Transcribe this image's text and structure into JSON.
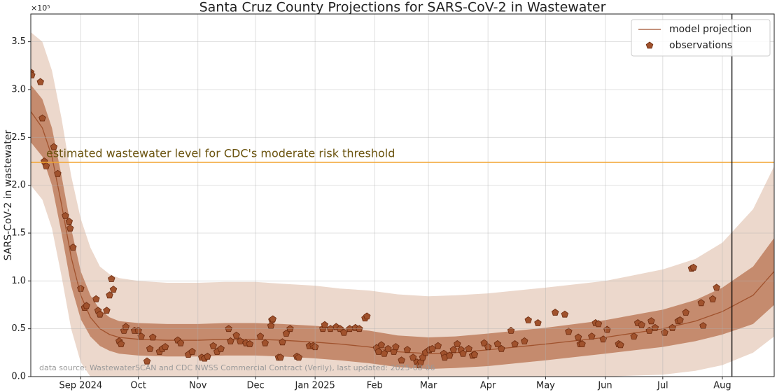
{
  "chart_data": {
    "type": "line",
    "title": "Santa Cruz County Projections for SARS-CoV-2 in Wastewater",
    "y_label": "SARS-CoV-2 in wastewater",
    "y_offset_label": "×10⁵",
    "x": [
      -26,
      -20,
      -15,
      -10,
      -5,
      0,
      5,
      10,
      15,
      20,
      30,
      45,
      61,
      75,
      91,
      105,
      122,
      135,
      150,
      165,
      181,
      195,
      212,
      242,
      273,
      303,
      320,
      334,
      350,
      361
    ],
    "series": [
      {
        "name": "model projection",
        "color": "#a0522d",
        "values": [
          2.77,
          2.6,
          2.3,
          1.8,
          1.25,
          0.85,
          0.62,
          0.5,
          0.44,
          0.41,
          0.39,
          0.38,
          0.38,
          0.39,
          0.39,
          0.38,
          0.36,
          0.34,
          0.31,
          0.26,
          0.24,
          0.25,
          0.28,
          0.34,
          0.41,
          0.5,
          0.58,
          0.68,
          0.85,
          1.1
        ]
      }
    ],
    "bands": [
      {
        "color": "#c58b6e",
        "lower": [
          2.45,
          2.3,
          2.0,
          1.5,
          0.95,
          0.6,
          0.42,
          0.32,
          0.27,
          0.24,
          0.22,
          0.21,
          0.21,
          0.22,
          0.22,
          0.21,
          0.19,
          0.17,
          0.14,
          0.1,
          0.08,
          0.09,
          0.11,
          0.17,
          0.24,
          0.31,
          0.37,
          0.44,
          0.55,
          0.75
        ],
        "upper": [
          3.05,
          2.9,
          2.6,
          2.1,
          1.55,
          1.1,
          0.85,
          0.7,
          0.62,
          0.58,
          0.56,
          0.55,
          0.55,
          0.56,
          0.56,
          0.55,
          0.53,
          0.51,
          0.48,
          0.43,
          0.41,
          0.42,
          0.45,
          0.51,
          0.59,
          0.7,
          0.8,
          0.93,
          1.15,
          1.45
        ]
      },
      {
        "color": "#ecd8cc",
        "lower": [
          2.0,
          1.85,
          1.55,
          1.05,
          0.5,
          0.15,
          0,
          0,
          0,
          0,
          0,
          0,
          0,
          0,
          0,
          0,
          0,
          0,
          0,
          0,
          0,
          0,
          0,
          0,
          0,
          0.02,
          0.06,
          0.12,
          0.25,
          0.42
        ],
        "upper": [
          3.6,
          3.5,
          3.2,
          2.7,
          2.1,
          1.65,
          1.35,
          1.15,
          1.07,
          1.03,
          1.0,
          0.98,
          0.98,
          0.99,
          0.99,
          0.97,
          0.95,
          0.92,
          0.9,
          0.86,
          0.84,
          0.85,
          0.87,
          0.93,
          1.0,
          1.12,
          1.23,
          1.4,
          1.75,
          2.2
        ]
      }
    ],
    "observations": {
      "name": "observations",
      "color": "#a0522d",
      "x": [
        -26,
        -25.5,
        -21,
        -20,
        -19,
        -18,
        -14,
        -12,
        -8,
        -6,
        -5.5,
        -4,
        0,
        2,
        3,
        8,
        9,
        10,
        13.5,
        15,
        16,
        17,
        20,
        21,
        22.5,
        23.5,
        28,
        30,
        31.5,
        34.5,
        36,
        37.5,
        41,
        42.5,
        44,
        50.5,
        52,
        56,
        58,
        63,
        64.5,
        66,
        69,
        71,
        73,
        77,
        78,
        81,
        83,
        86,
        88,
        93.5,
        96,
        99,
        99.5,
        100,
        103,
        104,
        105,
        107,
        109,
        112.5,
        113.5,
        119,
        121,
        122,
        126,
        127,
        130,
        133,
        135,
        137,
        140,
        143,
        145,
        148,
        149,
        154,
        155,
        156.5,
        158,
        160,
        163,
        164,
        167,
        170,
        173,
        175,
        176,
        177,
        178,
        179.5,
        181.5,
        183,
        186,
        189,
        189.5,
        192,
        194,
        196,
        198,
        199,
        202,
        204,
        205,
        210,
        212,
        217,
        219,
        224,
        226,
        231,
        233,
        238,
        247,
        252,
        254,
        259,
        260,
        261,
        266,
        268,
        269.5,
        272,
        274,
        280,
        281,
        288,
        290,
        292,
        296,
        297,
        299,
        304,
        308,
        311,
        312,
        315,
        318,
        319,
        323,
        324,
        329,
        331
      ],
      "values": [
        3.18,
        3.15,
        3.08,
        2.7,
        2.25,
        2.2,
        2.4,
        2.12,
        1.68,
        1.62,
        1.55,
        1.35,
        0.92,
        0.72,
        0.74,
        0.81,
        0.69,
        0.65,
        0.69,
        0.85,
        1.02,
        0.91,
        0.37,
        0.34,
        0.48,
        0.52,
        0.48,
        0.48,
        0.42,
        0.16,
        0.29,
        0.41,
        0.26,
        0.29,
        0.31,
        0.38,
        0.35,
        0.23,
        0.26,
        0.2,
        0.19,
        0.21,
        0.32,
        0.26,
        0.29,
        0.5,
        0.37,
        0.43,
        0.37,
        0.35,
        0.34,
        0.42,
        0.35,
        0.53,
        0.59,
        0.6,
        0.2,
        0.2,
        0.36,
        0.45,
        0.5,
        0.21,
        0.2,
        0.32,
        0.32,
        0.31,
        0.5,
        0.54,
        0.5,
        0.52,
        0.5,
        0.46,
        0.5,
        0.51,
        0.5,
        0.61,
        0.63,
        0.3,
        0.26,
        0.33,
        0.24,
        0.29,
        0.26,
        0.31,
        0.17,
        0.28,
        0.2,
        0.15,
        0.12,
        0.15,
        0.2,
        0.25,
        0.28,
        0.29,
        0.32,
        0.24,
        0.2,
        0.22,
        0.28,
        0.34,
        0.28,
        0.24,
        0.29,
        0.22,
        0.23,
        0.35,
        0.31,
        0.34,
        0.29,
        0.48,
        0.34,
        0.37,
        0.59,
        0.56,
        0.67,
        0.65,
        0.47,
        0.41,
        0.34,
        0.34,
        0.42,
        0.56,
        0.55,
        0.39,
        0.49,
        0.34,
        0.33,
        0.42,
        0.56,
        0.54,
        0.48,
        0.58,
        0.51,
        0.46,
        0.51,
        0.58,
        0.59,
        0.67,
        1.13,
        1.14,
        0.77,
        0.53,
        0.81,
        0.93
      ]
    },
    "threshold": {
      "value": 2.24,
      "label": "estimated wastewater level for CDC's moderate risk threshold",
      "color": "#f2a531",
      "label_color": "#6b5410"
    },
    "today": 339,
    "source": "data source: WastewaterSCAN and CDC NWSS Commercial Contract (Verily), last updated: 2025-08-06",
    "xlim": [
      -26,
      361
    ],
    "ylim": [
      0,
      3.79
    ],
    "xticks": [
      {
        "value": 0,
        "label": "Sep 2024"
      },
      {
        "value": 30,
        "label": "Oct"
      },
      {
        "value": 61,
        "label": "Nov"
      },
      {
        "value": 91,
        "label": "Dec"
      },
      {
        "value": 122,
        "label": "Jan 2025"
      },
      {
        "value": 153,
        "label": "Feb"
      },
      {
        "value": 181,
        "label": "Mar"
      },
      {
        "value": 212,
        "label": "Apr"
      },
      {
        "value": 242,
        "label": "May"
      },
      {
        "value": 273,
        "label": "Jun"
      },
      {
        "value": 303,
        "label": "Jul"
      },
      {
        "value": 334,
        "label": "Aug"
      }
    ],
    "yticks": [
      {
        "value": 0,
        "label": "0.0"
      },
      0.5,
      {
        "value": 1,
        "label": "1.0"
      },
      1.5,
      {
        "value": 2,
        "label": "2.0"
      },
      2.5,
      {
        "value": 3,
        "label": "3.0"
      },
      3.5
    ],
    "grid": true,
    "legend": "upper right"
  }
}
